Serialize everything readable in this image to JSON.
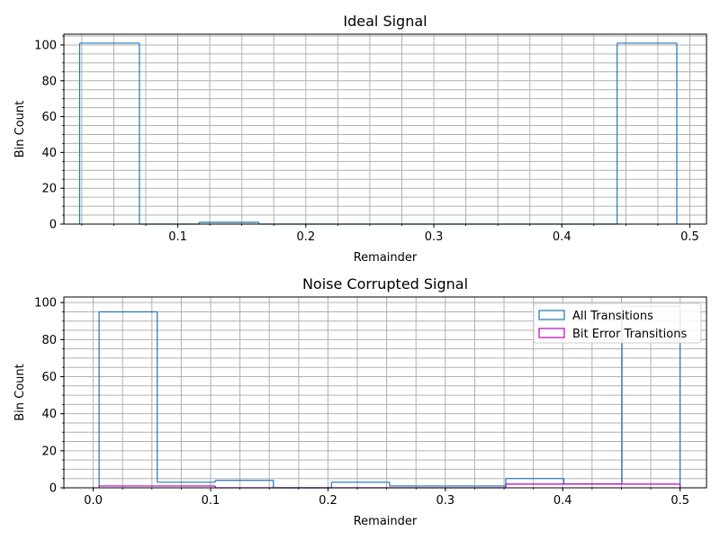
{
  "chart_data": [
    {
      "type": "histogram",
      "title": "Ideal Signal",
      "xlabel": "Remainder",
      "ylabel": "Bin Count",
      "xlim": [
        0.011,
        0.513
      ],
      "ylim": [
        0,
        106
      ],
      "x_ticks": [
        0.1,
        0.2,
        0.3,
        0.4,
        0.5
      ],
      "x_tick_labels": [
        "0.1",
        "0.2",
        "0.3",
        "0.4",
        "0.5"
      ],
      "y_ticks": [
        0,
        20,
        40,
        60,
        80,
        100
      ],
      "y_tick_labels": [
        "0",
        "20",
        "40",
        "60",
        "80",
        "100"
      ],
      "grid": true,
      "series": [
        {
          "color": "#1f77b4",
          "bin_edges": [
            0.0233,
            0.07,
            0.1166,
            0.1633,
            0.2099,
            0.2566,
            0.3032,
            0.3499,
            0.3965,
            0.4432,
            0.4898
          ],
          "counts": [
            101,
            0,
            1,
            0,
            0,
            0,
            0,
            0,
            0,
            101
          ]
        }
      ]
    },
    {
      "type": "histogram",
      "title": "Noise Corrupted Signal",
      "xlabel": "Remainder",
      "ylabel": "Bin Count",
      "xlim": [
        -0.025,
        0.5225
      ],
      "ylim": [
        0,
        103
      ],
      "x_ticks": [
        0.0,
        0.1,
        0.2,
        0.3,
        0.4,
        0.5
      ],
      "x_tick_labels": [
        "0.0",
        "0.1",
        "0.2",
        "0.3",
        "0.4",
        "0.5"
      ],
      "y_ticks": [
        0,
        20,
        40,
        60,
        80,
        100
      ],
      "y_tick_labels": [
        "0",
        "20",
        "40",
        "60",
        "80",
        "100"
      ],
      "grid": true,
      "legend_position": "top-right",
      "series": [
        {
          "name": "All Transitions",
          "color": "#1f77b4",
          "bin_edges": [
            0.005,
            0.0545,
            0.104,
            0.1535,
            0.203,
            0.2525,
            0.302,
            0.3515,
            0.401,
            0.4505,
            0.5
          ],
          "counts": [
            95,
            3,
            4,
            0,
            3,
            1,
            1,
            5,
            2,
            98
          ]
        },
        {
          "name": "Bit Error Transitions",
          "color": "#bf00bf",
          "bin_edges": [
            0.005,
            0.0545,
            0.104,
            0.1535,
            0.203,
            0.2525,
            0.302,
            0.3515,
            0.401,
            0.4505,
            0.5
          ],
          "counts": [
            1,
            1,
            0,
            0,
            0,
            0,
            0,
            2,
            2,
            2
          ]
        }
      ]
    }
  ]
}
